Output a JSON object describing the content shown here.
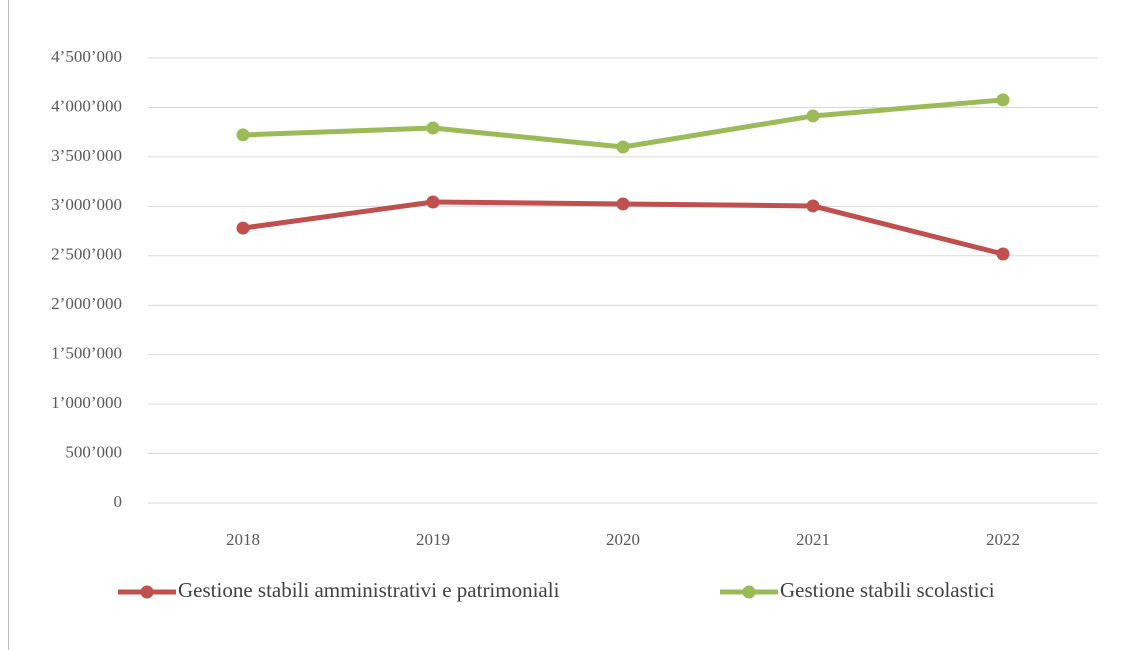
{
  "chart_data": {
    "type": "line",
    "categories": [
      "2018",
      "2019",
      "2020",
      "2021",
      "2022"
    ],
    "series": [
      {
        "name": "Gestione stabili amministrativi e patrimoniali",
        "color": "#c0504d",
        "values": [
          2780000,
          3044000,
          3024000,
          3004000,
          2518000
        ]
      },
      {
        "name": "Gestione stabili scolastici",
        "color": "#9bbb59",
        "values": [
          3722000,
          3792000,
          3600000,
          3914000,
          4076000
        ]
      }
    ],
    "ylim": [
      0,
      4500000
    ],
    "yticks": [
      0,
      {
        "value": 500000,
        "label": "500’000"
      },
      {
        "value": 1000000,
        "label": "1’000’000"
      },
      {
        "value": 1500000,
        "label": "1’500’000"
      },
      {
        "value": 2000000,
        "label": "2’000’000"
      },
      {
        "value": 2500000,
        "label": "2’500’000"
      },
      {
        "value": 3000000,
        "label": "3’000’000"
      },
      {
        "value": 3500000,
        "label": "3’500’000"
      },
      {
        "value": 4000000,
        "label": "4’000’000"
      },
      {
        "value": 4500000,
        "label": "4’500’000"
      }
    ],
    "grid": true,
    "legend": "bottom"
  }
}
